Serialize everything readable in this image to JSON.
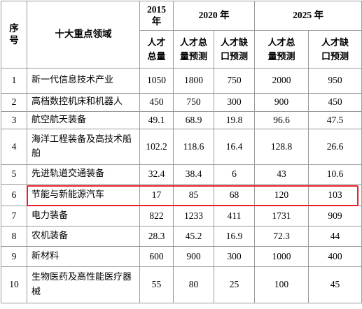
{
  "header": {
    "seq": "序号",
    "field": "十大重点领域",
    "y2015": "2015年",
    "y2020": "2020 年",
    "y2025": "2025 年",
    "talent_total": "人才总量",
    "talent_total_forecast": "人才总量预测",
    "talent_gap_forecast": "人才缺口预测"
  },
  "rows": [
    {
      "no": "1",
      "field": "新一代信息技术产业",
      "v2015": "1050",
      "t2020": "1800",
      "g2020": "750",
      "t2025": "2000",
      "g2025": "950"
    },
    {
      "no": "2",
      "field": "高档数控机床和机器人",
      "v2015": "450",
      "t2020": "750",
      "g2020": "300",
      "t2025": "900",
      "g2025": "450"
    },
    {
      "no": "3",
      "field": "航空航天装备",
      "v2015": "49.1",
      "t2020": "68.9",
      "g2020": "19.8",
      "t2025": "96.6",
      "g2025": "47.5"
    },
    {
      "no": "4",
      "field": "海洋工程装备及高技术船舶",
      "v2015": "102.2",
      "t2020": "118.6",
      "g2020": "16.4",
      "t2025": "128.8",
      "g2025": "26.6"
    },
    {
      "no": "5",
      "field": "先进轨道交通装备",
      "v2015": "32.4",
      "t2020": "38.4",
      "g2020": "6",
      "t2025": "43",
      "g2025": "10.6"
    },
    {
      "no": "6",
      "field": "节能与新能源汽车",
      "v2015": "17",
      "t2020": "85",
      "g2020": "68",
      "t2025": "120",
      "g2025": "103"
    },
    {
      "no": "7",
      "field": "电力装备",
      "v2015": "822",
      "t2020": "1233",
      "g2020": "411",
      "t2025": "1731",
      "g2025": "909"
    },
    {
      "no": "8",
      "field": "农机装备",
      "v2015": "28.3",
      "t2020": "45.2",
      "g2020": "16.9",
      "t2025": "72.3",
      "g2025": "44"
    },
    {
      "no": "9",
      "field": "新材料",
      "v2015": "600",
      "t2020": "900",
      "g2020": "300",
      "t2025": "1000",
      "g2025": "400"
    },
    {
      "no": "10",
      "field": "生物医药及高性能医疗器械",
      "v2015": "55",
      "t2020": "80",
      "g2020": "25",
      "t2025": "100",
      "g2025": "45"
    }
  ],
  "highlight_color": "#e8202a"
}
